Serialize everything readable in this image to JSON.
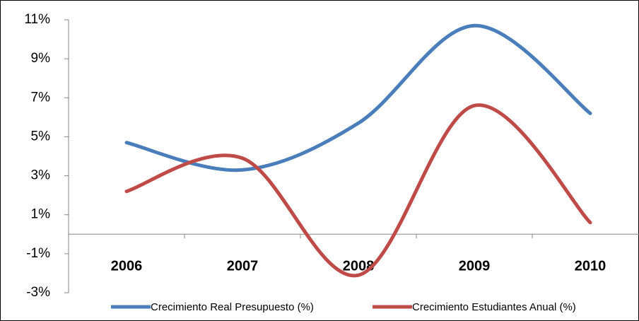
{
  "chart_data": {
    "type": "line",
    "categories": [
      "2006",
      "2007",
      "2008",
      "2009",
      "2010"
    ],
    "series": [
      {
        "name": "Crecimiento Real Presupuesto (%)",
        "color": "#4a7ebb",
        "values": [
          4.7,
          3.3,
          5.7,
          10.7,
          6.2
        ]
      },
      {
        "name": "Crecimiento Estudiantes Anual (%)",
        "color": "#be4b48",
        "values": [
          2.2,
          3.9,
          -2.1,
          6.6,
          0.6
        ]
      }
    ],
    "ylim": [
      -3,
      11
    ],
    "yticks": [
      {
        "value": -3,
        "label": "-3%"
      },
      {
        "value": -1,
        "label": "-1%"
      },
      {
        "value": 1,
        "label": "1%"
      },
      {
        "value": 3,
        "label": "3%"
      },
      {
        "value": 5,
        "label": "5%"
      },
      {
        "value": 7,
        "label": "7%"
      },
      {
        "value": 9,
        "label": "9%"
      },
      {
        "value": 11,
        "label": "11%"
      }
    ],
    "grid": false,
    "smooth": true,
    "legend": "bottom"
  }
}
